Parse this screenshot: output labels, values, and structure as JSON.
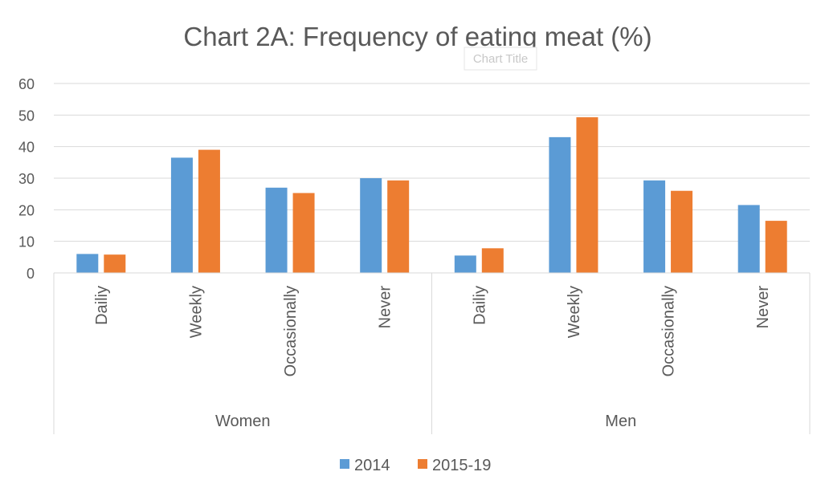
{
  "chart_data": {
    "type": "bar",
    "title": "Chart 2A: Frequency of eating meat (%)",
    "placeholder_title": "Chart Title",
    "groups": [
      {
        "name": "Women",
        "categories": [
          "Dailiy",
          "Weekly",
          "Occasionally",
          "Never"
        ],
        "series": [
          {
            "name": "2014",
            "values": [
              6,
              36.5,
              27,
              30
            ]
          },
          {
            "name": "2015-19",
            "values": [
              5.8,
              39,
              25.3,
              29.3
            ]
          }
        ]
      },
      {
        "name": "Men",
        "categories": [
          "Dailiy",
          "Weekly",
          "Occasionally",
          "Never"
        ],
        "series": [
          {
            "name": "2014",
            "values": [
              5.5,
              43,
              29.3,
              21.5
            ]
          },
          {
            "name": "2015-19",
            "values": [
              7.8,
              49.3,
              26,
              16.5
            ]
          }
        ]
      }
    ],
    "legend": [
      "2014",
      "2015-19"
    ],
    "colors": [
      "#5B9BD5",
      "#ED7D31"
    ],
    "ylim": [
      0,
      60
    ],
    "yticks": [
      0,
      10,
      20,
      30,
      40,
      50,
      60
    ],
    "grid": true,
    "legend_position": "bottom"
  }
}
